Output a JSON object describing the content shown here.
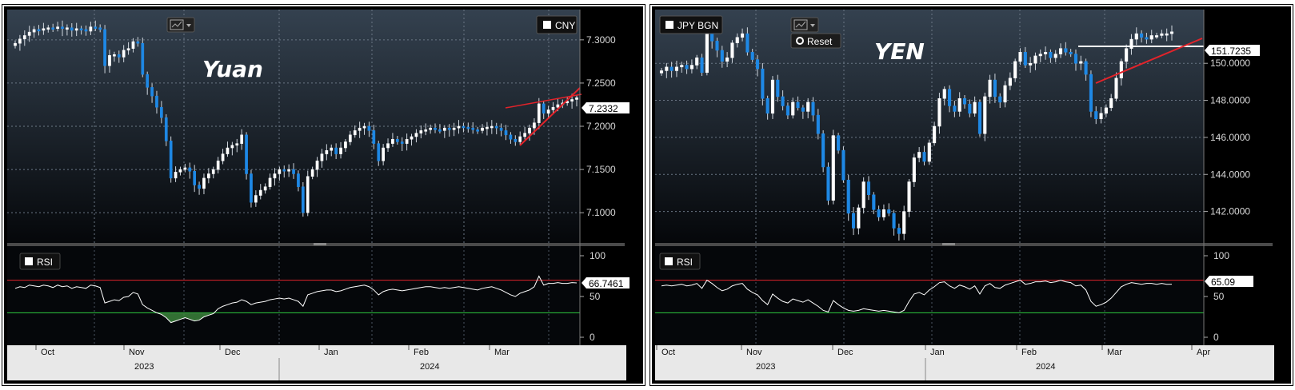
{
  "chart_data": [
    {
      "type": "candlestick",
      "title": "Yuan",
      "legend": "CNY",
      "current_value_label": "7.2332",
      "y_ticks": [
        "7.1000",
        "7.1500",
        "7.2000",
        "7.2500",
        "7.3000"
      ],
      "ylim": [
        7.065,
        7.335
      ],
      "month_labels": [
        "Oct",
        "Nov",
        "Dec",
        "Jan",
        "Feb",
        "Mar"
      ],
      "year_labels": [
        "2023",
        "2024"
      ],
      "close_series": [
        7.296,
        7.301,
        7.305,
        7.309,
        7.312,
        7.311,
        7.313,
        7.314,
        7.313,
        7.315,
        7.313,
        7.314,
        7.311,
        7.313,
        7.312,
        7.31,
        7.315,
        7.314,
        7.312,
        7.27,
        7.282,
        7.283,
        7.28,
        7.288,
        7.29,
        7.298,
        7.296,
        7.26,
        7.245,
        7.235,
        7.222,
        7.21,
        7.183,
        7.14,
        7.147,
        7.15,
        7.152,
        7.148,
        7.132,
        7.128,
        7.14,
        7.145,
        7.15,
        7.16,
        7.168,
        7.175,
        7.178,
        7.18,
        7.19,
        7.145,
        7.112,
        7.12,
        7.126,
        7.13,
        7.14,
        7.145,
        7.15,
        7.148,
        7.15,
        7.145,
        7.13,
        7.1,
        7.142,
        7.15,
        7.16,
        7.168,
        7.172,
        7.175,
        7.168,
        7.175,
        7.182,
        7.19,
        7.195,
        7.198,
        7.2,
        7.195,
        7.18,
        7.16,
        7.175,
        7.18,
        7.185,
        7.182,
        7.18,
        7.185,
        7.188,
        7.192,
        7.195,
        7.196,
        7.198,
        7.196,
        7.195,
        7.198,
        7.196,
        7.198,
        7.2,
        7.199,
        7.198,
        7.196,
        7.195,
        7.198,
        7.199,
        7.2,
        7.198,
        7.195,
        7.19,
        7.185,
        7.182,
        7.188,
        7.192,
        7.198,
        7.204,
        7.226,
        7.215,
        7.219,
        7.222,
        7.225,
        7.227,
        7.229,
        7.231,
        7.233
      ],
      "rsi": {
        "label": "RSI",
        "current_value_label": "66.7461",
        "y_ticks": [
          "0",
          "50",
          "100"
        ],
        "upper": 70,
        "lower": 30,
        "values": [
          60,
          62,
          61,
          64,
          63,
          62,
          64,
          63,
          61,
          64,
          62,
          63,
          60,
          62,
          61,
          60,
          64,
          63,
          61,
          42,
          44,
          46,
          45,
          49,
          50,
          55,
          53,
          40,
          36,
          33,
          30,
          28,
          24,
          18,
          20,
          22,
          24,
          22,
          20,
          21,
          25,
          27,
          29,
          35,
          38,
          40,
          42,
          43,
          46,
          44,
          40,
          42,
          43,
          44,
          46,
          47,
          48,
          47,
          48,
          46,
          44,
          38,
          52,
          54,
          56,
          57,
          58,
          58,
          56,
          57,
          59,
          61,
          62,
          63,
          64,
          62,
          58,
          52,
          56,
          58,
          59,
          58,
          57,
          58,
          59,
          60,
          61,
          62,
          62,
          61,
          60,
          61,
          60,
          61,
          62,
          61,
          60,
          59,
          58,
          60,
          61,
          62,
          60,
          58,
          55,
          52,
          50,
          54,
          56,
          58,
          62,
          75,
          64,
          66,
          66,
          67,
          66,
          66,
          67,
          66.7
        ]
      }
    },
    {
      "type": "candlestick",
      "title": "YEN",
      "legend": "JPY BGN",
      "reset_label": "Reset",
      "current_value_label": "151.7235",
      "y_ticks": [
        "142.0000",
        "144.0000",
        "146.0000",
        "148.0000",
        "150.0000"
      ],
      "ylim": [
        140.3,
        152.9
      ],
      "month_labels": [
        "Oct",
        "Nov",
        "Dec",
        "Jan",
        "Feb",
        "Mar",
        "Apr"
      ],
      "year_labels": [
        "2023",
        "2024"
      ],
      "close_series": [
        149.6,
        149.8,
        149.6,
        149.8,
        149.9,
        149.7,
        149.9,
        150.3,
        149.5,
        151.6,
        151.2,
        150.7,
        150.1,
        150.3,
        151.1,
        151.4,
        151.6,
        150.6,
        150.2,
        149.7,
        148.1,
        147.3,
        149.1,
        148.2,
        147.7,
        147.2,
        147.9,
        147.6,
        147.4,
        147.9,
        147.2,
        146.2,
        144.4,
        142.6,
        146.1,
        145.3,
        143.7,
        141.9,
        141.1,
        142.2,
        143.6,
        142.9,
        142.1,
        141.7,
        142.1,
        141.9,
        141.1,
        140.8,
        142.0,
        143.6,
        144.9,
        145.2,
        144.7,
        145.7,
        146.6,
        148.1,
        148.6,
        147.7,
        147.4,
        148.1,
        147.8,
        147.3,
        147.9,
        146.2,
        148.2,
        149.1,
        148.2,
        147.9,
        148.8,
        149.2,
        150.1,
        150.6,
        149.9,
        150.0,
        150.4,
        150.5,
        150.6,
        150.3,
        150.5,
        150.8,
        150.6,
        150.5,
        150.0,
        150.1,
        149.4,
        147.4,
        147.0,
        147.3,
        147.6,
        148.1,
        149.2,
        150.1,
        150.8,
        151.3,
        151.6,
        151.4,
        151.3,
        151.5,
        151.5,
        151.6,
        151.6,
        151.7
      ],
      "rsi": {
        "label": "RSI",
        "current_value_label": "65.09",
        "y_ticks": [
          "0",
          "50",
          "100"
        ],
        "upper": 70,
        "lower": 30,
        "values": [
          63,
          64,
          63,
          64,
          65,
          63,
          64,
          66,
          60,
          70,
          66,
          61,
          57,
          59,
          63,
          65,
          66,
          59,
          55,
          52,
          45,
          40,
          53,
          48,
          44,
          42,
          47,
          45,
          43,
          46,
          42,
          38,
          33,
          31,
          45,
          40,
          36,
          33,
          32,
          33,
          35,
          34,
          33,
          32,
          33,
          32,
          31,
          30,
          33,
          44,
          53,
          55,
          52,
          58,
          62,
          67,
          68,
          63,
          60,
          64,
          62,
          59,
          63,
          53,
          63,
          66,
          61,
          60,
          64,
          66,
          68,
          70,
          65,
          66,
          68,
          68,
          69,
          67,
          68,
          70,
          68,
          67,
          63,
          64,
          58,
          44,
          38,
          40,
          43,
          48,
          55,
          62,
          65,
          67,
          66,
          65,
          66,
          66,
          65,
          66,
          65,
          65.1
        ]
      }
    }
  ]
}
